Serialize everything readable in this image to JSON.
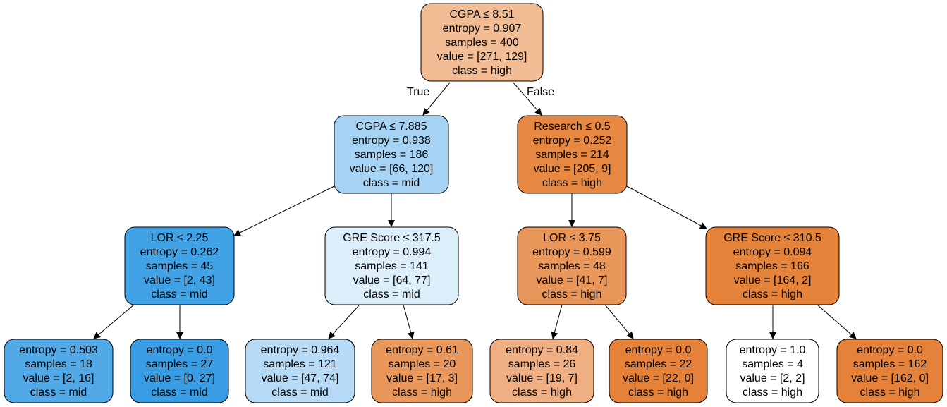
{
  "nodes": [
    {
      "id": "n0",
      "lines": [
        "CGPA ≤ 8.51",
        "entropy = 0.907",
        "samples = 400",
        "value = [271, 129]",
        "class = high"
      ],
      "fill": "#f2bd95"
    },
    {
      "id": "n1",
      "lines": [
        "CGPA ≤ 7.885",
        "entropy = 0.938",
        "samples = 186",
        "value = [66, 120]",
        "class = mid"
      ],
      "fill": "#a6d3f3"
    },
    {
      "id": "n2",
      "lines": [
        "Research ≤ 0.5",
        "entropy = 0.252",
        "samples = 214",
        "value = [205, 9]",
        "class = high"
      ],
      "fill": "#e68742"
    },
    {
      "id": "n3",
      "lines": [
        "LOR  ≤ 2.25",
        "entropy = 0.262",
        "samples = 45",
        "value = [2, 43]",
        "class = mid"
      ],
      "fill": "#42a2e6"
    },
    {
      "id": "n4",
      "lines": [
        "GRE Score ≤ 317.5",
        "entropy = 0.994",
        "samples = 141",
        "value = [64, 77]",
        "class = mid"
      ],
      "fill": "#ddeefb"
    },
    {
      "id": "n5",
      "lines": [
        "LOR  ≤ 3.75",
        "entropy = 0.599",
        "samples = 48",
        "value = [41, 7]",
        "class = high"
      ],
      "fill": "#e9965b"
    },
    {
      "id": "n6",
      "lines": [
        "GRE Score ≤ 310.5",
        "entropy = 0.094",
        "samples = 166",
        "value = [164, 2]",
        "class = high"
      ],
      "fill": "#e5833b"
    },
    {
      "id": "n7",
      "lines": [
        "entropy = 0.503",
        "samples = 18",
        "value = [2, 16]",
        "class = mid"
      ],
      "fill": "#52a9e8"
    },
    {
      "id": "n8",
      "lines": [
        "entropy = 0.0",
        "samples = 27",
        "value = [0, 27]",
        "class = mid"
      ],
      "fill": "#399de5"
    },
    {
      "id": "n9",
      "lines": [
        "entropy = 0.964",
        "samples = 121",
        "value = [47, 74]",
        "class = mid"
      ],
      "fill": "#b7dbf6"
    },
    {
      "id": "n10",
      "lines": [
        "entropy = 0.61",
        "samples = 20",
        "value = [17, 3]",
        "class = high"
      ],
      "fill": "#ea975c"
    },
    {
      "id": "n11",
      "lines": [
        "entropy = 0.84",
        "samples = 26",
        "value = [19, 7]",
        "class = high"
      ],
      "fill": "#efaf82"
    },
    {
      "id": "n12",
      "lines": [
        "entropy = 0.0",
        "samples = 22",
        "value = [22, 0]",
        "class = high"
      ],
      "fill": "#e58139"
    },
    {
      "id": "n13",
      "lines": [
        "entropy = 1.0",
        "samples = 4",
        "value = [2, 2]",
        "class = high"
      ],
      "fill": "#ffffff"
    },
    {
      "id": "n14",
      "lines": [
        "entropy = 0.0",
        "samples = 162",
        "value = [162, 0]",
        "class = high"
      ],
      "fill": "#e58139"
    }
  ],
  "edges": [
    {
      "from": "n0",
      "to": "n1",
      "label": "True"
    },
    {
      "from": "n0",
      "to": "n2",
      "label": "False"
    },
    {
      "from": "n1",
      "to": "n3",
      "label": ""
    },
    {
      "from": "n1",
      "to": "n4",
      "label": ""
    },
    {
      "from": "n2",
      "to": "n5",
      "label": ""
    },
    {
      "from": "n2",
      "to": "n6",
      "label": ""
    },
    {
      "from": "n3",
      "to": "n7",
      "label": ""
    },
    {
      "from": "n3",
      "to": "n8",
      "label": ""
    },
    {
      "from": "n4",
      "to": "n9",
      "label": ""
    },
    {
      "from": "n4",
      "to": "n10",
      "label": ""
    },
    {
      "from": "n5",
      "to": "n11",
      "label": ""
    },
    {
      "from": "n5",
      "to": "n12",
      "label": ""
    },
    {
      "from": "n6",
      "to": "n13",
      "label": ""
    },
    {
      "from": "n6",
      "to": "n14",
      "label": ""
    }
  ]
}
